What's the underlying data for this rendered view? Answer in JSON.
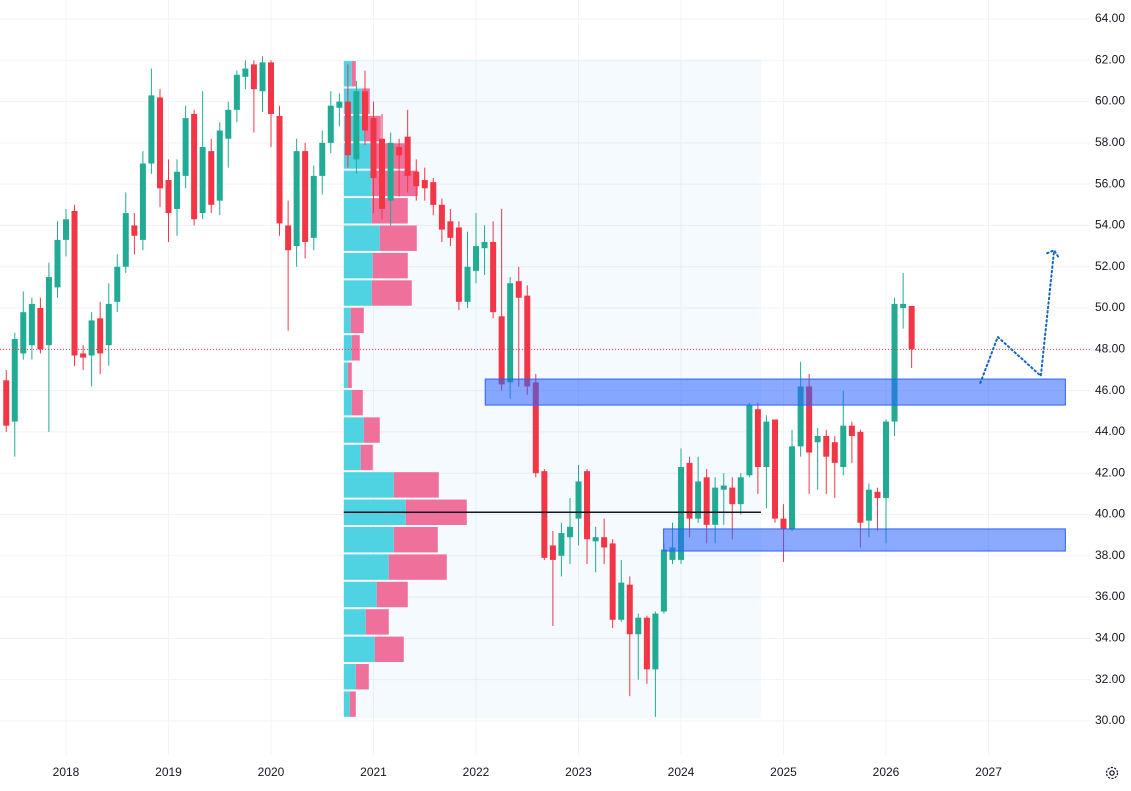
{
  "chart_data": {
    "type": "candlestick",
    "xlim": [
      2017.356,
      2027.99
    ],
    "ylim": [
      28.35,
      64.92
    ],
    "xticks": [
      2018,
      2019,
      2020,
      2021,
      2022,
      2023,
      2024,
      2025,
      2026,
      2027
    ],
    "yticks": [
      {
        "value": 30,
        "label": "30.00"
      },
      {
        "value": 32,
        "label": "32.00"
      },
      {
        "value": 34,
        "label": "34.00"
      },
      {
        "value": 36,
        "label": "36.00"
      },
      {
        "value": 38,
        "label": "38.00"
      },
      {
        "value": 40,
        "label": "40.00"
      },
      {
        "value": 42,
        "label": "42.00"
      },
      {
        "value": 44,
        "label": "44.00"
      },
      {
        "value": 46,
        "label": "46.00"
      },
      {
        "value": 48,
        "label": "48.00"
      },
      {
        "value": 50,
        "label": "50.00"
      },
      {
        "value": 52,
        "label": "52.00"
      },
      {
        "value": 54,
        "label": "54.00"
      },
      {
        "value": 56,
        "label": "56.00"
      },
      {
        "value": 58,
        "label": "58.00"
      },
      {
        "value": 60,
        "label": "60.00"
      },
      {
        "value": 62,
        "label": "62.00"
      },
      {
        "value": 64,
        "label": "64.00"
      }
    ],
    "grid": true,
    "up_color": "#22ab94",
    "down_color": "#f23645",
    "x": [
      2017.417,
      2017.5,
      2017.583,
      2017.667,
      2017.75,
      2017.833,
      2017.917,
      2018.0,
      2018.083,
      2018.167,
      2018.25,
      2018.333,
      2018.417,
      2018.5,
      2018.583,
      2018.667,
      2018.75,
      2018.833,
      2018.917,
      2019.0,
      2019.083,
      2019.167,
      2019.25,
      2019.333,
      2019.417,
      2019.5,
      2019.583,
      2019.667,
      2019.75,
      2019.833,
      2019.917,
      2020.0,
      2020.083,
      2020.167,
      2020.25,
      2020.333,
      2020.417,
      2020.5,
      2020.583,
      2020.667,
      2020.75,
      2020.833,
      2020.917,
      2021.0,
      2021.083,
      2021.167,
      2021.25,
      2021.333,
      2021.417,
      2021.5,
      2021.583,
      2021.667,
      2021.75,
      2021.833,
      2021.917,
      2022.0,
      2022.083,
      2022.167,
      2022.25,
      2022.333,
      2022.417,
      2022.5,
      2022.583,
      2022.667,
      2022.75,
      2022.833,
      2022.917,
      2023.0,
      2023.083,
      2023.167,
      2023.25,
      2023.333,
      2023.417,
      2023.5,
      2023.583,
      2023.667,
      2023.75,
      2023.833,
      2023.917,
      2024.0,
      2024.083,
      2024.167,
      2024.25,
      2024.333,
      2024.417,
      2024.5,
      2024.583,
      2024.667,
      2024.75,
      2024.833,
      2024.917,
      2025.0,
      2025.083,
      2025.167,
      2025.25,
      2025.333,
      2025.417,
      2025.5,
      2025.583,
      2025.667,
      2025.75,
      2025.833,
      2025.917,
      2026.0,
      2026.083,
      2026.167,
      2026.25
    ],
    "open": [
      46.5,
      44.5,
      47.8,
      48.2,
      50,
      48.2,
      51,
      53.3,
      54.7,
      47.8,
      47.7,
      49.5,
      48.2,
      50.3,
      52,
      54,
      53.3,
      57,
      60.2,
      56.2,
      54.8,
      56.4,
      59.4,
      54.6,
      57.6,
      55.2,
      58.2,
      59.6,
      61.2,
      61.8,
      60.5,
      61.9,
      59.3,
      54,
      53,
      57.6,
      53.4,
      56.4,
      58,
      59.7,
      60,
      57.2,
      60.5,
      59.2,
      58.2,
      55.2,
      57.8,
      58.3,
      56.6,
      56.2,
      56.1,
      55,
      54.2,
      53.9,
      50.3,
      51.8,
      52.9,
      53.2,
      49.6,
      46.4,
      51.3,
      50.6,
      46.4,
      42.1,
      38.5,
      38,
      38.9,
      39.8,
      42.1,
      38.7,
      38.9,
      38.6,
      34.9,
      36.6,
      34.2,
      35,
      32.5,
      35.3,
      37.8,
      37.8,
      42.5,
      39.8,
      41.8,
      39.5,
      41.2,
      41.3,
      40.5,
      41.9,
      45.1,
      42.3,
      44.6,
      39.8,
      39.3,
      43.3,
      46.2,
      43.5,
      43.8,
      43.5,
      42.3,
      44.3,
      44,
      39.7,
      41.1,
      40.8,
      44.5,
      50,
      50.1
    ],
    "high": [
      47,
      48.8,
      50.8,
      50.5,
      50.5,
      52.2,
      54.2,
      54.8,
      55,
      48.2,
      49.8,
      50.3,
      51.2,
      52.6,
      55.6,
      54.6,
      57.6,
      61.6,
      60.6,
      57.2,
      57.2,
      59.8,
      59.6,
      60.5,
      58.2,
      59,
      60,
      61.5,
      62,
      62,
      62.2,
      62,
      59.8,
      55.2,
      58.2,
      58,
      56.9,
      58.6,
      60.5,
      60.4,
      61.8,
      61,
      61.5,
      60,
      59.4,
      58.5,
      58.2,
      59.6,
      57.2,
      56.8,
      56.3,
      55.3,
      54.8,
      54.2,
      53.7,
      54.6,
      54,
      54.2,
      54.8,
      51.5,
      52,
      51.1,
      46.8,
      42.2,
      39.2,
      39.6,
      40.8,
      42.4,
      42.2,
      39.4,
      39.8,
      38.8,
      37.8,
      37,
      35.2,
      35.1,
      35.3,
      38.6,
      39.6,
      43.2,
      42.8,
      42.8,
      42.2,
      41.8,
      42,
      41.8,
      42,
      45.4,
      45.4,
      44.8,
      44.6,
      40.5,
      44.1,
      47.4,
      46.8,
      44.2,
      44.1,
      43.8,
      46,
      44.5,
      44.1,
      41.5,
      41.3,
      44.6,
      50.5,
      51.7,
      50.1
    ],
    "low": [
      44,
      42.8,
      47.5,
      47.5,
      47.8,
      44,
      50.5,
      52.5,
      47.2,
      47,
      46.2,
      46.8,
      47.2,
      49.8,
      51.7,
      52.6,
      52.8,
      56.5,
      54.9,
      53.2,
      53.5,
      55.8,
      54,
      54.3,
      54.6,
      54.5,
      56.8,
      59,
      60.6,
      58.5,
      59.5,
      57.8,
      53.5,
      48.9,
      52,
      52.4,
      52.8,
      55.5,
      57.5,
      58.8,
      56.8,
      56.5,
      57.9,
      54.6,
      54.3,
      54,
      55.4,
      55.6,
      55.2,
      55.2,
      54.5,
      53.2,
      53,
      49.9,
      50,
      51.2,
      51.6,
      49.5,
      46,
      45.6,
      46.2,
      45.8,
      41.8,
      37.8,
      34.6,
      37,
      37.6,
      38.5,
      37.6,
      37.2,
      37.6,
      34.5,
      34.8,
      31.2,
      32,
      31.8,
      30.2,
      35.2,
      37.6,
      37.6,
      38.9,
      39.6,
      38.6,
      38.6,
      39.5,
      38.8,
      40,
      41.8,
      41,
      40.3,
      39.6,
      37.7,
      39.2,
      42.8,
      41,
      41.2,
      41,
      40.8,
      41.9,
      42.5,
      38.4,
      38.9,
      39.2,
      38.6,
      43.8,
      49,
      47.1
    ],
    "close": [
      44.3,
      48.5,
      49.8,
      50.2,
      48,
      51.5,
      53.3,
      54.3,
      47.7,
      47.6,
      49.4,
      47.8,
      50.2,
      52,
      54.6,
      53.5,
      57,
      60.3,
      55.8,
      54.6,
      56.6,
      59.2,
      54.3,
      57.8,
      55,
      58.6,
      59.6,
      61.3,
      61.6,
      60.6,
      61.9,
      59.4,
      54.1,
      52.8,
      57.6,
      53.2,
      56.4,
      58,
      59.8,
      60,
      57.4,
      60.5,
      58.6,
      56.3,
      54.8,
      58,
      57.4,
      56.4,
      55.9,
      55.8,
      55,
      53.8,
      53.4,
      50.3,
      52,
      53,
      53.2,
      49.8,
      46.3,
      51.2,
      50.5,
      46.2,
      42,
      37.9,
      37.8,
      39.1,
      39.4,
      41.6,
      38.8,
      38.9,
      38.4,
      34.9,
      36.7,
      34.2,
      35,
      32.5,
      35.2,
      38.3,
      38.4,
      42.3,
      39.8,
      41.6,
      39.5,
      41.3,
      41.4,
      40.5,
      41.8,
      45.3,
      42.3,
      44.5,
      39.8,
      39.3,
      43.3,
      46.2,
      43,
      43.8,
      42.8,
      42.5,
      44.3,
      43.8,
      39.6,
      41.2,
      40.8,
      44.5,
      50.2,
      50.2,
      48
    ],
    "profile": {
      "x": [
        2020.71,
        2024.78
      ],
      "price_range": [
        30.15,
        62.01
      ],
      "up": [
        6,
        12,
        31,
        22,
        33,
        45,
        50,
        62,
        50,
        17,
        20,
        8,
        4,
        8,
        7,
        28,
        29,
        36,
        28,
        28,
        28,
        22,
        18,
        8
      ],
      "down": [
        6,
        13,
        29,
        23,
        31,
        58,
        44,
        61,
        45,
        12,
        16,
        11,
        4,
        8,
        13,
        40,
        35,
        37,
        36,
        46,
        33,
        15,
        8,
        4
      ],
      "up_color": "#4fd3e3",
      "down_color": "#f0709c",
      "poc_color": "#131722"
    },
    "zones": [
      {
        "x": [
          2022.09,
          2027.75
        ],
        "y": [
          45.3,
          46.56
        ]
      },
      {
        "x": [
          2023.83,
          2027.75
        ],
        "y": [
          38.23,
          39.3
        ]
      }
    ],
    "zone_color": "#2962ff",
    "projection": {
      "x": [
        2026.92,
        2027.09,
        2027.51,
        2027.64
      ],
      "y": [
        46.37,
        48.6,
        46.71,
        52.8
      ],
      "color": "#1565c0"
    }
  }
}
